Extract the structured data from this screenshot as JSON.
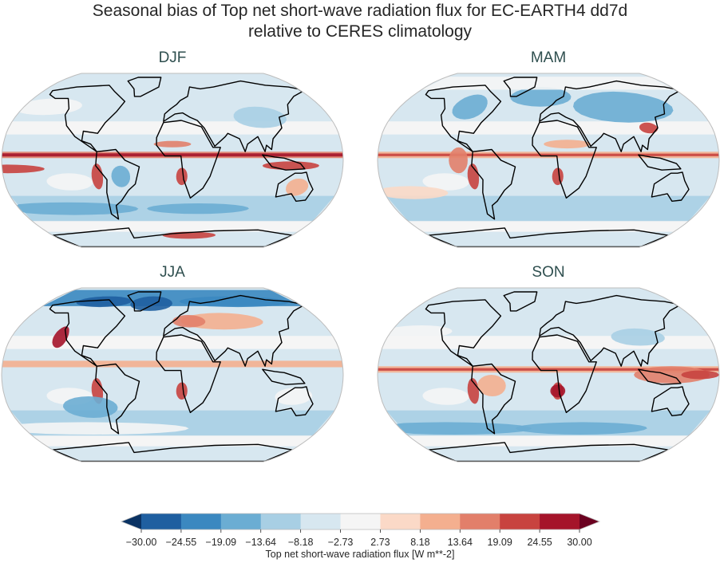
{
  "title_line1": "Seasonal bias of Top net short-wave radiation flux for EC-EARTH4 dd7d",
  "title_line2": "relative to CERES climatology",
  "panels": [
    {
      "title": "DJF"
    },
    {
      "title": "MAM"
    },
    {
      "title": "JJA"
    },
    {
      "title": "SON"
    }
  ],
  "colorbar": {
    "label": "Top net short-wave radiation flux [W m**-2]",
    "ticks": [
      "−30.00",
      "−24.55",
      "−19.09",
      "−13.64",
      "−8.18",
      "−2.73",
      "2.73",
      "8.18",
      "13.64",
      "19.09",
      "24.55",
      "30.00"
    ],
    "colors": [
      "#1f5fa0",
      "#3b88c0",
      "#6badd3",
      "#a8cfe4",
      "#d7e7f0",
      "#f5f5f5",
      "#fbd9c7",
      "#f4af8f",
      "#e27f6a",
      "#c8433f",
      "#a5142a"
    ],
    "extend_low_color": "#0a3263",
    "extend_high_color": "#6b0120"
  },
  "chart_data": {
    "type": "heatmap",
    "projection": "Robinson",
    "panels": [
      "DJF",
      "MAM",
      "JJA",
      "SON"
    ],
    "levels": [
      -30.0,
      -24.55,
      -19.09,
      -13.64,
      -8.18,
      -2.73,
      2.73,
      8.18,
      13.64,
      19.09,
      24.55,
      30.0
    ],
    "extend": "both",
    "colormap": "RdBu_r",
    "units": "W m**-2"
  }
}
